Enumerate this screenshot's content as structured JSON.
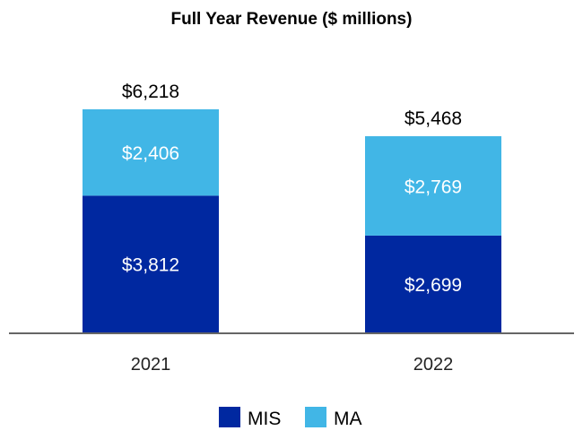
{
  "chart_data": {
    "type": "bar",
    "stacked": true,
    "title": "Full Year Revenue ($ millions)",
    "categories": [
      "2021",
      "2022"
    ],
    "series": [
      {
        "name": "MIS",
        "values": [
          3812,
          2699
        ],
        "labels": [
          "$3,812",
          "$2,699"
        ],
        "color": "#0028A0"
      },
      {
        "name": "MA",
        "values": [
          2406,
          2769
        ],
        "labels": [
          "$2,406",
          "$2,769"
        ],
        "color": "#41B6E6"
      }
    ],
    "totals": [
      6218,
      5468
    ],
    "total_labels": [
      "$6,218",
      "$5,468"
    ],
    "grid": false,
    "legend": "bottom",
    "xlabel": "",
    "ylabel": ""
  }
}
